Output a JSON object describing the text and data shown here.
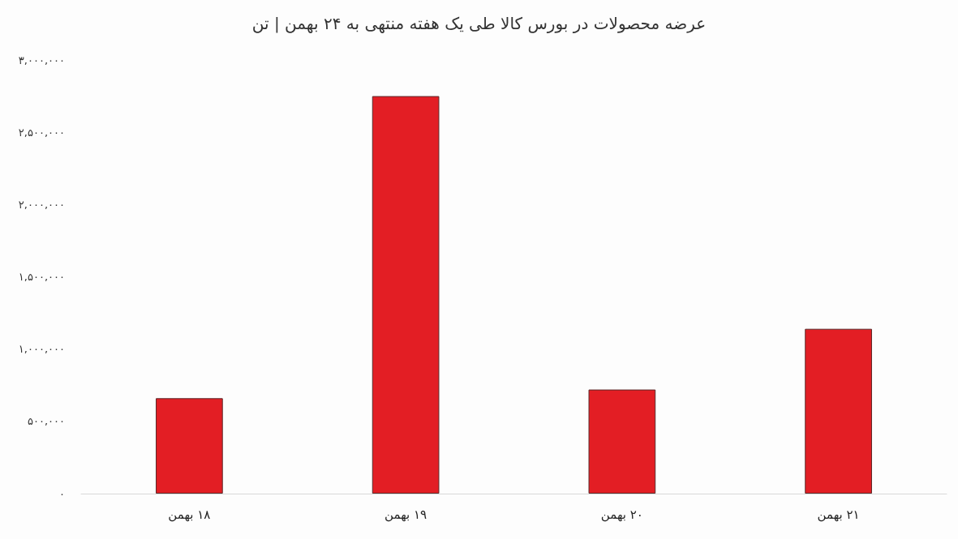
{
  "chart_data": {
    "type": "bar",
    "title": "عرضه محصولات در بورس کالا طی یک هفته منتهی به ۲۴ بهمن | تن",
    "categories": [
      "۱۸ بهمن",
      "۱۹ بهمن",
      "۲۰ بهمن",
      "۲۱ بهمن"
    ],
    "values": [
      660000,
      2750000,
      720000,
      1140000
    ],
    "color": "#e31e24",
    "ylim": [
      0,
      3000000
    ],
    "yticks": [
      {
        "value": 0,
        "label": "۰"
      },
      {
        "value": 500000,
        "label": "۵۰۰,۰۰۰"
      },
      {
        "value": 1000000,
        "label": "۱,۰۰۰,۰۰۰"
      },
      {
        "value": 1500000,
        "label": "۱,۵۰۰,۰۰۰"
      },
      {
        "value": 2000000,
        "label": "۲,۰۰۰,۰۰۰"
      },
      {
        "value": 2500000,
        "label": "۲,۵۰۰,۰۰۰"
      },
      {
        "value": 3000000,
        "label": "۳,۰۰۰,۰۰۰"
      }
    ],
    "grid": false
  }
}
